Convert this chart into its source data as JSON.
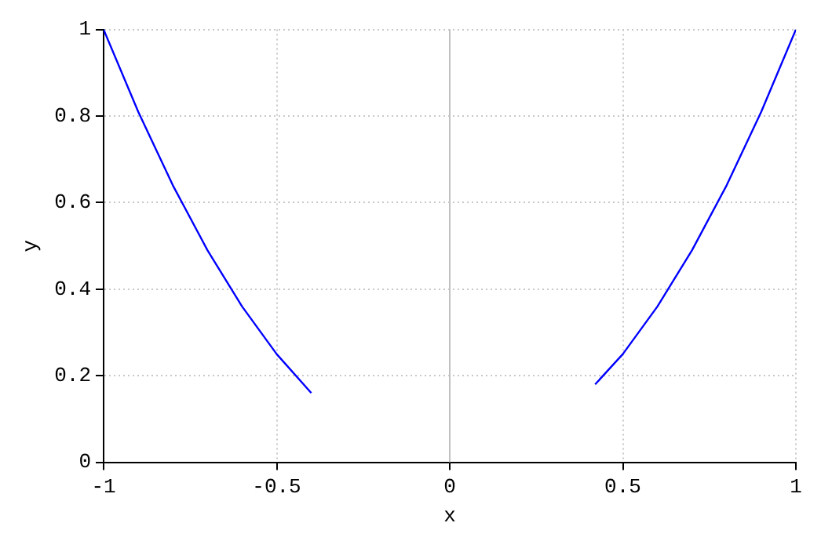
{
  "chart_data": {
    "type": "line",
    "xlabel": "x",
    "ylabel": "y",
    "x": [
      -1,
      -0.9,
      -0.8,
      -0.7,
      -0.6,
      -0.5,
      -0.4,
      0,
      0.42,
      0.5,
      0.6,
      0.7,
      0.8,
      0.9,
      1
    ],
    "series": [
      {
        "color": "#0000ff",
        "values": [
          1,
          0.81,
          0.64,
          0.49,
          0.36,
          0.25,
          0.16,
          null,
          0.18,
          0.25,
          0.36,
          0.49,
          0.64,
          0.81,
          1
        ]
      }
    ],
    "xlim": [
      -1,
      1
    ],
    "xticks": [
      -1,
      -0.5,
      0,
      0.5,
      1
    ],
    "ylim": [
      0,
      1
    ],
    "yticks": [
      0,
      0.2,
      0.4,
      0.6,
      0.8,
      1
    ],
    "ref_lines": [
      {
        "axis": "x",
        "value": 0,
        "color": "#c0c0c0"
      }
    ],
    "grid": true,
    "marker": "none",
    "line_style": "solid",
    "legend": false
  }
}
